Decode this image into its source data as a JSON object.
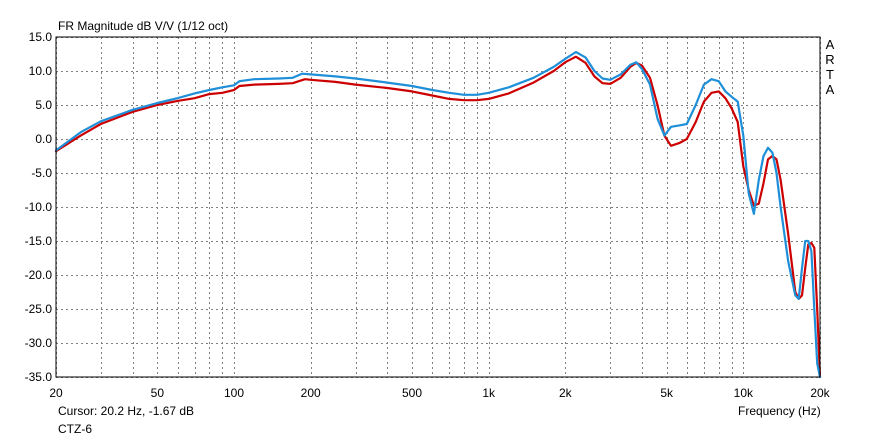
{
  "title": "FR Magnitude dB V/V (1/12 oct)",
  "brand_letters": [
    "A",
    "R",
    "T",
    "A"
  ],
  "cursor_readout": "Cursor: 20.2 Hz, -1.67 dB",
  "device_label": "CTZ-6",
  "colors": {
    "background": "#ffffff",
    "grid": "#808080",
    "frame": "#000000",
    "red_series": "#cc0000",
    "blue_series": "#1e8fd8"
  },
  "chart_data": {
    "type": "line",
    "x_scale": "log",
    "xlabel": "Frequency (Hz)",
    "ylabel": "",
    "xlim": [
      20,
      20000
    ],
    "ylim": [
      -35,
      15
    ],
    "grid": true,
    "x_tick_values": [
      20,
      50,
      100,
      200,
      500,
      1000,
      2000,
      5000,
      10000,
      20000
    ],
    "x_tick_labels": [
      "20",
      "50",
      "100",
      "200",
      "500",
      "1k",
      "2k",
      "5k",
      "10k",
      "20k"
    ],
    "x_minor_grid": [
      30,
      40,
      60,
      70,
      80,
      90,
      300,
      400,
      600,
      700,
      800,
      900,
      3000,
      4000,
      6000,
      7000,
      8000,
      9000
    ],
    "y_tick_values": [
      15,
      10,
      5,
      0,
      -5,
      -10,
      -15,
      -20,
      -25,
      -30,
      -35
    ],
    "y_tick_labels": [
      "15.0",
      "10.0",
      "5.0",
      "0.0",
      "-5.0",
      "-10.0",
      "-15.0",
      "-20.0",
      "-25.0",
      "-30.0",
      "-35.0"
    ],
    "series": [
      {
        "color": "#cc0000",
        "points": [
          [
            20,
            -1.8
          ],
          [
            25,
            0.5
          ],
          [
            30,
            2.2
          ],
          [
            40,
            4.0
          ],
          [
            50,
            5.0
          ],
          [
            60,
            5.6
          ],
          [
            70,
            6.0
          ],
          [
            80,
            6.6
          ],
          [
            90,
            6.8
          ],
          [
            100,
            7.2
          ],
          [
            105,
            7.8
          ],
          [
            120,
            8.0
          ],
          [
            150,
            8.1
          ],
          [
            170,
            8.2
          ],
          [
            190,
            8.8
          ],
          [
            200,
            8.7
          ],
          [
            250,
            8.4
          ],
          [
            300,
            8.0
          ],
          [
            400,
            7.5
          ],
          [
            500,
            7.0
          ],
          [
            600,
            6.4
          ],
          [
            700,
            5.9
          ],
          [
            800,
            5.7
          ],
          [
            900,
            5.7
          ],
          [
            1000,
            5.9
          ],
          [
            1200,
            6.7
          ],
          [
            1500,
            8.3
          ],
          [
            1800,
            10.0
          ],
          [
            2000,
            11.3
          ],
          [
            2200,
            12.1
          ],
          [
            2400,
            11.2
          ],
          [
            2600,
            9.2
          ],
          [
            2800,
            8.2
          ],
          [
            3000,
            8.1
          ],
          [
            3300,
            9.0
          ],
          [
            3600,
            10.6
          ],
          [
            3800,
            11.2
          ],
          [
            4000,
            10.8
          ],
          [
            4300,
            9.0
          ],
          [
            4600,
            5.0
          ],
          [
            4900,
            0.5
          ],
          [
            5200,
            -1.0
          ],
          [
            5600,
            -0.6
          ],
          [
            6000,
            0.0
          ],
          [
            6500,
            2.5
          ],
          [
            7000,
            5.5
          ],
          [
            7500,
            6.8
          ],
          [
            8000,
            7.0
          ],
          [
            8500,
            6.0
          ],
          [
            9000,
            4.5
          ],
          [
            9500,
            2.5
          ],
          [
            10000,
            -4.0
          ],
          [
            10500,
            -7.5
          ],
          [
            11000,
            -9.8
          ],
          [
            11500,
            -9.5
          ],
          [
            12000,
            -6.5
          ],
          [
            12500,
            -3.0
          ],
          [
            13000,
            -2.5
          ],
          [
            13500,
            -3.0
          ],
          [
            14000,
            -6.0
          ],
          [
            15000,
            -14.0
          ],
          [
            16000,
            -22.5
          ],
          [
            16500,
            -23.5
          ],
          [
            17000,
            -23.0
          ],
          [
            17500,
            -19.0
          ],
          [
            18000,
            -15.5
          ],
          [
            18500,
            -15.3
          ],
          [
            19000,
            -16.0
          ],
          [
            19500,
            -25.0
          ],
          [
            20000,
            -35.0
          ]
        ]
      },
      {
        "color": "#1e8fd8",
        "points": [
          [
            20,
            -1.67
          ],
          [
            25,
            1.0
          ],
          [
            30,
            2.6
          ],
          [
            40,
            4.3
          ],
          [
            50,
            5.3
          ],
          [
            60,
            6.0
          ],
          [
            70,
            6.7
          ],
          [
            80,
            7.2
          ],
          [
            90,
            7.6
          ],
          [
            100,
            7.9
          ],
          [
            105,
            8.5
          ],
          [
            120,
            8.8
          ],
          [
            150,
            8.9
          ],
          [
            170,
            9.0
          ],
          [
            185,
            9.6
          ],
          [
            200,
            9.5
          ],
          [
            250,
            9.2
          ],
          [
            300,
            8.9
          ],
          [
            400,
            8.3
          ],
          [
            500,
            7.8
          ],
          [
            600,
            7.2
          ],
          [
            700,
            6.8
          ],
          [
            800,
            6.5
          ],
          [
            900,
            6.5
          ],
          [
            1000,
            6.8
          ],
          [
            1200,
            7.6
          ],
          [
            1500,
            9.0
          ],
          [
            1800,
            10.6
          ],
          [
            2000,
            11.8
          ],
          [
            2200,
            12.8
          ],
          [
            2400,
            12.0
          ],
          [
            2600,
            10.0
          ],
          [
            2800,
            8.9
          ],
          [
            3000,
            8.7
          ],
          [
            3300,
            9.5
          ],
          [
            3600,
            10.9
          ],
          [
            3800,
            11.3
          ],
          [
            4000,
            10.3
          ],
          [
            4300,
            8.0
          ],
          [
            4600,
            3.0
          ],
          [
            4900,
            0.5
          ],
          [
            5200,
            1.8
          ],
          [
            5600,
            2.0
          ],
          [
            6000,
            2.2
          ],
          [
            6500,
            5.0
          ],
          [
            7000,
            8.0
          ],
          [
            7500,
            8.8
          ],
          [
            8000,
            8.5
          ],
          [
            8500,
            7.0
          ],
          [
            9000,
            6.2
          ],
          [
            9500,
            5.5
          ],
          [
            10000,
            0.5
          ],
          [
            10500,
            -8.0
          ],
          [
            11000,
            -11.0
          ],
          [
            11500,
            -6.0
          ],
          [
            12000,
            -2.5
          ],
          [
            12500,
            -1.3
          ],
          [
            13000,
            -2.0
          ],
          [
            13500,
            -5.0
          ],
          [
            14000,
            -10.0
          ],
          [
            15000,
            -18.0
          ],
          [
            16000,
            -23.0
          ],
          [
            16500,
            -23.5
          ],
          [
            17000,
            -19.0
          ],
          [
            17500,
            -15.0
          ],
          [
            18000,
            -15.0
          ],
          [
            18500,
            -16.5
          ],
          [
            19000,
            -25.0
          ],
          [
            19500,
            -33.0
          ],
          [
            20000,
            -35.0
          ]
        ]
      }
    ]
  }
}
